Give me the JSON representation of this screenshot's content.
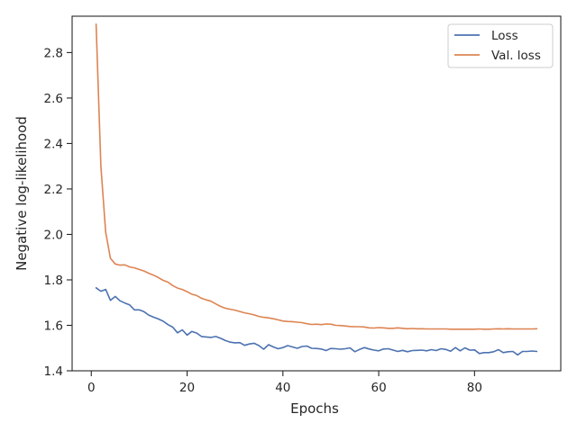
{
  "chart_data": {
    "type": "line",
    "xlabel": "Epochs",
    "ylabel": "Negative log-likelihood",
    "xlim": [
      -4,
      98
    ],
    "ylim": [
      1.4,
      2.96
    ],
    "x_ticks": [
      0,
      20,
      40,
      60,
      80
    ],
    "x_tick_labels": [
      "0",
      "20",
      "40",
      "60",
      "80"
    ],
    "y_ticks": [
      1.4,
      1.6,
      1.8,
      2.0,
      2.2,
      2.4,
      2.6,
      2.8
    ],
    "y_tick_labels": [
      "1.4",
      "1.6",
      "1.8",
      "2.0",
      "2.2",
      "2.4",
      "2.6",
      "2.8"
    ],
    "grid": false,
    "legend_position": "top-right",
    "x": [
      1,
      2,
      3,
      4,
      5,
      6,
      7,
      8,
      9,
      10,
      11,
      12,
      13,
      14,
      15,
      16,
      17,
      18,
      19,
      20,
      21,
      22,
      23,
      24,
      25,
      26,
      27,
      28,
      29,
      30,
      31,
      32,
      33,
      34,
      35,
      36,
      37,
      38,
      39,
      40,
      41,
      42,
      43,
      44,
      45,
      46,
      47,
      48,
      49,
      50,
      51,
      52,
      53,
      54,
      55,
      56,
      57,
      58,
      59,
      60,
      61,
      62,
      63,
      64,
      65,
      66,
      67,
      68,
      69,
      70,
      71,
      72,
      73,
      74,
      75,
      76,
      77,
      78,
      79,
      80,
      81,
      82,
      83,
      84,
      85,
      86,
      87,
      88,
      89,
      90,
      91,
      92,
      93
    ],
    "series": [
      {
        "name": "Loss",
        "color": "#4c72b0",
        "values": [
          1.765,
          1.75,
          1.758,
          1.71,
          1.727,
          1.708,
          1.698,
          1.69,
          1.668,
          1.668,
          1.66,
          1.645,
          1.636,
          1.628,
          1.618,
          1.603,
          1.592,
          1.567,
          1.58,
          1.557,
          1.573,
          1.566,
          1.551,
          1.549,
          1.547,
          1.551,
          1.543,
          1.533,
          1.526,
          1.523,
          1.524,
          1.512,
          1.518,
          1.521,
          1.511,
          1.495,
          1.515,
          1.505,
          1.497,
          1.502,
          1.511,
          1.505,
          1.499,
          1.507,
          1.509,
          1.499,
          1.498,
          1.496,
          1.489,
          1.498,
          1.497,
          1.495,
          1.497,
          1.501,
          1.484,
          1.494,
          1.502,
          1.496,
          1.491,
          1.488,
          1.496,
          1.497,
          1.491,
          1.485,
          1.49,
          1.484,
          1.489,
          1.49,
          1.491,
          1.488,
          1.493,
          1.489,
          1.497,
          1.494,
          1.486,
          1.502,
          1.488,
          1.501,
          1.491,
          1.492,
          1.476,
          1.48,
          1.48,
          1.484,
          1.493,
          1.48,
          1.484,
          1.485,
          1.47,
          1.485,
          1.485,
          1.487,
          1.485
        ]
      },
      {
        "name": "Val. loss",
        "color": "#dd8452",
        "values": [
          2.925,
          2.3,
          2.01,
          1.895,
          1.87,
          1.865,
          1.866,
          1.857,
          1.853,
          1.846,
          1.839,
          1.829,
          1.821,
          1.81,
          1.798,
          1.79,
          1.775,
          1.764,
          1.758,
          1.748,
          1.737,
          1.731,
          1.719,
          1.712,
          1.706,
          1.694,
          1.683,
          1.675,
          1.671,
          1.667,
          1.661,
          1.655,
          1.651,
          1.646,
          1.639,
          1.635,
          1.633,
          1.629,
          1.624,
          1.619,
          1.617,
          1.616,
          1.614,
          1.612,
          1.607,
          1.604,
          1.605,
          1.603,
          1.606,
          1.605,
          1.6,
          1.599,
          1.597,
          1.595,
          1.594,
          1.594,
          1.593,
          1.589,
          1.588,
          1.59,
          1.589,
          1.587,
          1.587,
          1.589,
          1.587,
          1.585,
          1.586,
          1.585,
          1.585,
          1.584,
          1.584,
          1.584,
          1.584,
          1.584,
          1.583,
          1.583,
          1.583,
          1.583,
          1.583,
          1.583,
          1.584,
          1.583,
          1.583,
          1.584,
          1.585,
          1.584,
          1.585,
          1.584,
          1.584,
          1.584,
          1.584,
          1.584,
          1.585
        ]
      }
    ]
  }
}
